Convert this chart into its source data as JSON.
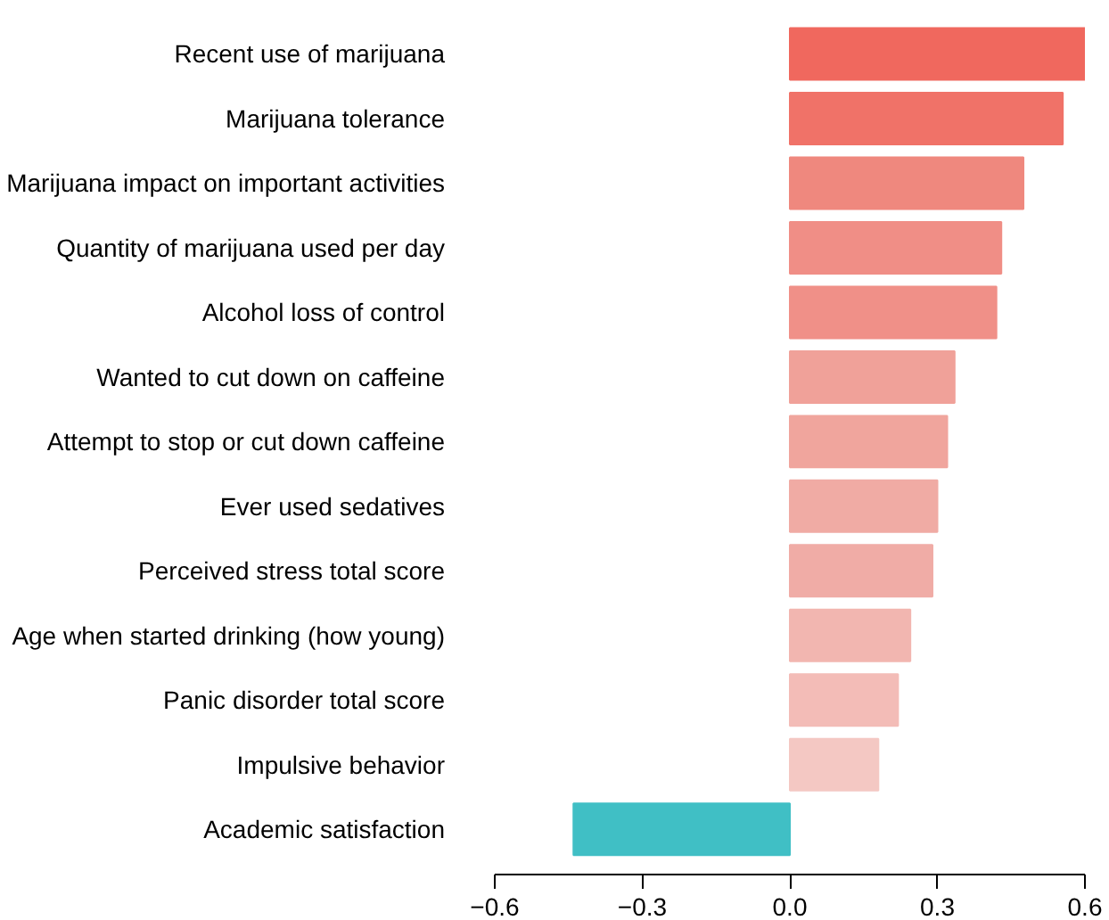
{
  "chart_data": {
    "type": "bar",
    "orientation": "horizontal",
    "categories": [
      "Recent use of marijuana",
      "Marijuana tolerance",
      "Marijuana impact on important activities",
      "Quantity of marijuana used per day",
      "Alcohol loss of control",
      "Wanted to cut down on caffeine",
      "Attempt to stop or cut down caffeine",
      "Ever used sedatives",
      "Perceived stress total score",
      "Age when started drinking (how young)",
      "Panic disorder total score",
      "Impulsive behavior",
      "Academic satisfaction"
    ],
    "values": [
      0.6,
      0.555,
      0.475,
      0.43,
      0.42,
      0.335,
      0.32,
      0.3,
      0.29,
      0.245,
      0.22,
      0.18,
      -0.44
    ],
    "colors": [
      "#f0685e",
      "#f07268",
      "#ef887e",
      "#f08e86",
      "#f09088",
      "#f0a199",
      "#f0a59d",
      "#f0aba4",
      "#f0aca6",
      "#f2b6b0",
      "#f3bcb7",
      "#f4c8c3",
      "#40bfc5"
    ],
    "xlim": [
      -0.6,
      0.6
    ],
    "xticks": [
      {
        "value": -0.6,
        "label": "−0.6"
      },
      {
        "value": -0.3,
        "label": "−0.3"
      },
      {
        "value": 0,
        "label": "0.0"
      },
      0.3,
      0.6
    ],
    "grid": false
  }
}
